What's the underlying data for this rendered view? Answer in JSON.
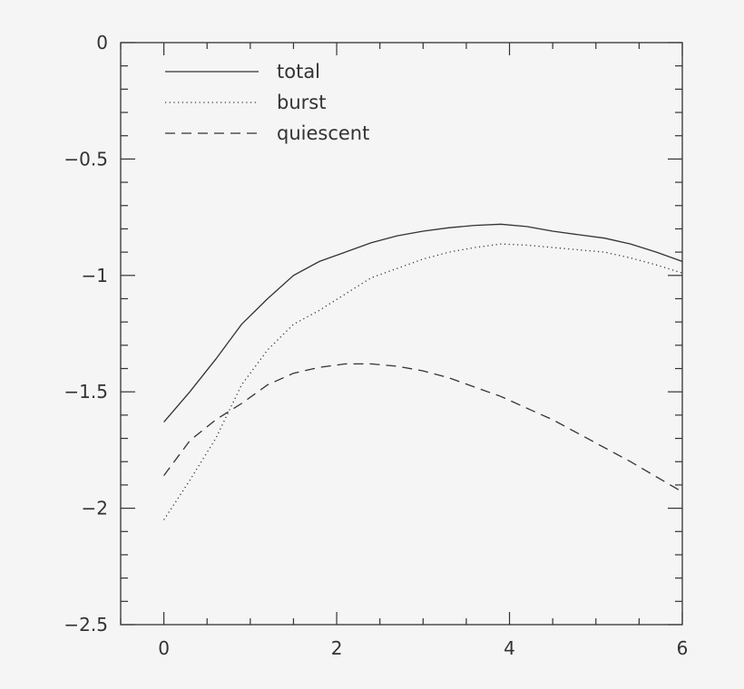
{
  "chart_data": {
    "type": "line",
    "title": "",
    "xlabel": "",
    "ylabel": "",
    "xlim": [
      -0.5,
      6
    ],
    "ylim": [
      -2.5,
      0
    ],
    "xticks": [
      0,
      2,
      4,
      6
    ],
    "xtick_labels": [
      "0",
      "2",
      "4",
      "6"
    ],
    "yticks": [
      0,
      -0.5,
      -1,
      -1.5,
      -2,
      -2.5
    ],
    "ytick_labels": [
      "0",
      "−0.5",
      "−1",
      "−1.5",
      "−2",
      "−2.5"
    ],
    "grid": false,
    "legend_position": "top-left",
    "series": [
      {
        "name": "total",
        "style": "solid",
        "color": "#333333",
        "x": [
          0,
          0.3,
          0.6,
          0.9,
          1.2,
          1.5,
          1.8,
          2.1,
          2.4,
          2.7,
          3.0,
          3.3,
          3.6,
          3.9,
          4.2,
          4.5,
          4.8,
          5.1,
          5.4,
          5.7,
          6.0
        ],
        "y": [
          -1.63,
          -1.5,
          -1.36,
          -1.21,
          -1.1,
          -1.0,
          -0.94,
          -0.9,
          -0.86,
          -0.83,
          -0.81,
          -0.795,
          -0.785,
          -0.78,
          -0.79,
          -0.81,
          -0.825,
          -0.84,
          -0.865,
          -0.9,
          -0.94
        ]
      },
      {
        "name": "burst",
        "style": "dotted",
        "color": "#333333",
        "x": [
          0,
          0.3,
          0.6,
          0.9,
          1.2,
          1.5,
          1.8,
          2.1,
          2.4,
          2.7,
          3.0,
          3.3,
          3.6,
          3.9,
          4.2,
          4.5,
          4.8,
          5.1,
          5.4,
          5.7,
          6.0
        ],
        "y": [
          -2.05,
          -1.88,
          -1.7,
          -1.47,
          -1.32,
          -1.21,
          -1.15,
          -1.08,
          -1.01,
          -0.97,
          -0.93,
          -0.9,
          -0.88,
          -0.865,
          -0.87,
          -0.88,
          -0.89,
          -0.9,
          -0.925,
          -0.955,
          -0.99
        ]
      },
      {
        "name": "quiescent",
        "style": "dashed",
        "color": "#333333",
        "x": [
          0,
          0.3,
          0.6,
          0.9,
          1.2,
          1.5,
          1.8,
          2.1,
          2.4,
          2.7,
          3.0,
          3.3,
          3.6,
          3.9,
          4.2,
          4.5,
          4.8,
          5.1,
          5.4,
          5.7,
          6.0
        ],
        "y": [
          -1.86,
          -1.71,
          -1.62,
          -1.55,
          -1.47,
          -1.42,
          -1.395,
          -1.38,
          -1.38,
          -1.39,
          -1.41,
          -1.44,
          -1.48,
          -1.52,
          -1.57,
          -1.62,
          -1.68,
          -1.74,
          -1.8,
          -1.865,
          -1.93
        ]
      }
    ]
  }
}
